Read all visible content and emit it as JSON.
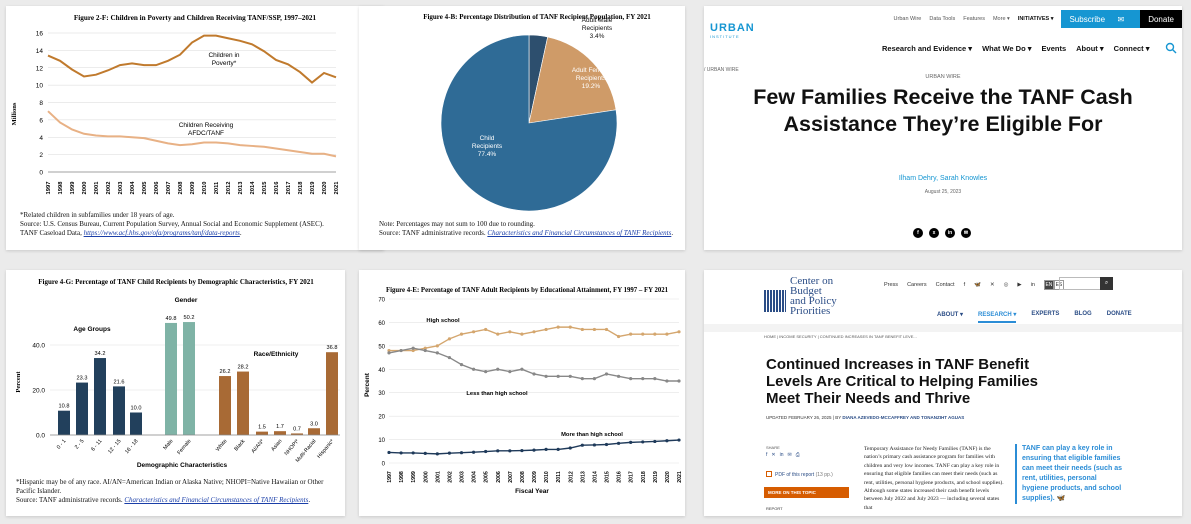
{
  "fig2f": {
    "title": "Figure 2-F: Children in Poverty and Children Receiving TANF/SSP, 1997–2021",
    "ylabel": "Millions",
    "yticks": [
      "0",
      "2",
      "4",
      "6",
      "8",
      "10",
      "12",
      "14",
      "16"
    ],
    "xticks": [
      "1997",
      "1998",
      "1999",
      "2000",
      "2001",
      "2002",
      "2003",
      "2004",
      "2005",
      "2006",
      "2007",
      "2008",
      "2009",
      "2010",
      "2011",
      "2012",
      "2013",
      "2014",
      "2015",
      "2016",
      "2017",
      "2018",
      "2019",
      "2020",
      "2021"
    ],
    "label_poverty": [
      "Children in",
      "Poverty*"
    ],
    "label_tanf": [
      "Children Receiving",
      "AFDC/TANF"
    ],
    "poverty": [
      13.4,
      12.8,
      11.8,
      11.0,
      11.2,
      11.7,
      12.3,
      12.5,
      12.3,
      12.3,
      12.8,
      13.5,
      14.9,
      15.7,
      15.7,
      15.4,
      15.1,
      14.7,
      13.9,
      12.9,
      12.4,
      11.5,
      10.3,
      11.4,
      10.9
    ],
    "tanf": [
      7.0,
      5.7,
      4.9,
      4.4,
      4.2,
      4.1,
      4.1,
      4.0,
      3.9,
      3.6,
      3.3,
      3.1,
      3.2,
      3.4,
      3.4,
      3.3,
      3.1,
      3.0,
      2.9,
      2.7,
      2.5,
      2.3,
      2.1,
      2.1,
      1.8
    ],
    "color_poverty": "#c07a2d",
    "color_tanf": "#e8b185",
    "notes": [
      "*Related children in subfamilies under 18 years of age.",
      "Source:  U.S. Census Bureau, Current Population Survey, Annual Social and Economic Supplement (ASEC).",
      "TANF Caseload Data,"
    ],
    "link": "https://www.acf.hhs.gov/ofa/programs/tanf/data-reports",
    "link_tail": "."
  },
  "fig4b": {
    "title": "Figure 4-B: Percentage Distribution of TANF Recipient Population, FY 2021",
    "slices": [
      {
        "label": [
          "Adult Male",
          "Recipients"
        ],
        "value": 3.4,
        "pct": "3.4%",
        "color": "#2d4f6e"
      },
      {
        "label": [
          "Adult Female",
          "Recipients"
        ],
        "value": 19.2,
        "pct": "19.2%",
        "color": "#cf9b68"
      },
      {
        "label": [
          "Child",
          "Recipients"
        ],
        "value": 77.4,
        "pct": "77.4%",
        "color": "#2f6b96"
      }
    ],
    "note1": "Note: Percentages may not sum to 100 due to rounding.",
    "note2": "Source: TANF administrative records.",
    "link": "Characteristics and Financial Circumstances of TANF Recipients",
    "link_tail": "."
  },
  "urban": {
    "top_links": [
      "Urban Wire",
      "Data Tools",
      "Features",
      "More ▾"
    ],
    "initiatives": "INITIATIVES ▾",
    "subscribe": "Subscribe",
    "donate": "Donate",
    "logo_word": "URBAN",
    "logo_sub": "INSTITUTE",
    "nav": [
      "Research and Evidence ▾",
      "What We Do ▾",
      "Events",
      "About ▾",
      "Connect ▾"
    ],
    "crumb": "/  URBAN WIRE",
    "kicker": "URBAN WIRE",
    "title": "Few Families Receive the TANF Cash Assistance They’re Eligible For",
    "authors": "Ilham Dehry, Sarah Knowles",
    "date": "August 25, 2023",
    "share": [
      "f",
      "x",
      "in",
      "✉"
    ]
  },
  "fig4g": {
    "title": "Figure 4-G:  Percentage of TANF Child Recipients by Demographic Characteristics, FY 2021",
    "ylabel": "Percent",
    "xlabel": "Demographic Characteristics",
    "yticks": [
      "0.0",
      "20.0",
      "40.0"
    ],
    "group_age": "Age Groups",
    "group_gender": "Gender",
    "group_race": "Race/Ethnicity",
    "bars": [
      {
        "cat": "0 - 1",
        "value": 10.8,
        "label": "10.8",
        "group": "age"
      },
      {
        "cat": "2 - 5",
        "value": 23.3,
        "label": "23.3",
        "group": "age"
      },
      {
        "cat": "6 - 11",
        "value": 34.2,
        "label": "34.2",
        "group": "age"
      },
      {
        "cat": "12 - 15",
        "value": 21.6,
        "label": "21.6",
        "group": "age"
      },
      {
        "cat": "16 - 18",
        "value": 10.0,
        "label": "10.0",
        "group": "age"
      },
      {
        "cat": "Male",
        "value": 49.8,
        "label": "49.8",
        "group": "gender"
      },
      {
        "cat": "Female",
        "value": 50.2,
        "label": "50.2",
        "group": "gender"
      },
      {
        "cat": "White",
        "value": 26.2,
        "label": "26.2",
        "group": "race"
      },
      {
        "cat": "Black",
        "value": 28.2,
        "label": "28.2",
        "group": "race"
      },
      {
        "cat": "AI/AN*",
        "value": 1.5,
        "label": "1.5",
        "group": "race"
      },
      {
        "cat": "Asian",
        "value": 1.7,
        "label": "1.7",
        "group": "race"
      },
      {
        "cat": "NHOPI*",
        "value": 0.7,
        "label": "0.7",
        "group": "race"
      },
      {
        "cat": "Multi-Racial",
        "value": 3.0,
        "label": "3.0",
        "group": "race"
      },
      {
        "cat": "Hispanic*",
        "value": 36.8,
        "label": "36.8",
        "group": "race"
      }
    ],
    "colors": {
      "age": "#22405c",
      "gender": "#7fb3a6",
      "race": "#a86a35"
    },
    "notes": [
      "*Hispanic may be of any race.  AI/AN=American Indian or Alaska Native; NHOPI=Native Hawaiian or Other",
      "Pacific Islander.",
      "Source:  TANF administrative records."
    ],
    "link": "Characteristics and Financial Circumstances of TANF Recipients",
    "link_tail": "."
  },
  "fig4e": {
    "title": "Figure 4-E:  Percentage of TANF Adult Recipients by Educational Attainment, FY 1997 – FY 2021",
    "ylabel": "Percent",
    "xlabel": "Fiscal Year",
    "yticks": [
      "0",
      "10",
      "20",
      "30",
      "40",
      "50",
      "60",
      "70"
    ],
    "xticks": [
      "1997",
      "1998",
      "1999",
      "2000",
      "2001",
      "2002",
      "2003",
      "2004",
      "2005",
      "2006",
      "2007",
      "2008",
      "2009",
      "2010",
      "2011",
      "2012",
      "2013",
      "2014",
      "2015",
      "2016",
      "2017",
      "2018",
      "2019",
      "2020",
      "2021"
    ],
    "label_hs": "High school",
    "label_lt": "Less than high school",
    "label_mt": "More than high school",
    "hs": [
      48.0,
      48.0,
      48.0,
      49.0,
      50.0,
      53.0,
      55.0,
      56.0,
      57.0,
      55.0,
      56.0,
      55.0,
      56.0,
      57.0,
      58.0,
      58.0,
      57.0,
      57.0,
      57.0,
      54.0,
      55.0,
      55.0,
      55.0,
      55.0,
      56.0
    ],
    "lt": [
      47.0,
      48.0,
      49.0,
      48.0,
      47.0,
      45.0,
      42.0,
      40.0,
      39.0,
      40.0,
      39.0,
      40.0,
      38.0,
      37.0,
      37.0,
      37.0,
      36.0,
      36.0,
      38.0,
      37.0,
      36.0,
      36.0,
      36.0,
      35.0,
      35.0
    ],
    "mt": [
      4.5,
      4.3,
      4.3,
      4.1,
      3.9,
      4.2,
      4.4,
      4.6,
      4.9,
      5.2,
      5.2,
      5.3,
      5.5,
      5.8,
      5.8,
      6.4,
      7.6,
      7.7,
      7.9,
      8.4,
      8.8,
      9.0,
      9.2,
      9.5,
      9.8
    ],
    "color_hs": "#d4a66e",
    "color_lt": "#888888",
    "color_mt": "#1f3a5a"
  },
  "cbpp": {
    "logo": [
      "Center on",
      "Budget",
      "and Policy",
      "Priorities"
    ],
    "util": [
      "Press",
      "Careers",
      "Contact"
    ],
    "lang": [
      "EN",
      "ES"
    ],
    "nav": [
      "ABOUT ▾",
      "RESEARCH ▾",
      "EXPERTS",
      "BLOG",
      "DONATE"
    ],
    "crumb": "HOME  |  INCOME SECURITY  |  CONTINUED INCREASES IN TANF BENEFIT LEVE...",
    "title": "Continued Increases in TANF Benefit Levels Are Critical to Helping Families Meet Their Needs and Thrive",
    "updated": "UPDATED FEBRUARY 26, 2025  |  BY ",
    "byline": "DIANA AZEVEDO-MCCAFFREY AND TONANZIHT AGUAS",
    "share": "SHARE",
    "share_icons": [
      "f",
      "✕",
      "in",
      "✉",
      "⎙"
    ],
    "pdf": "PDF of this report",
    "pdf_pages": "(13 pp.)",
    "more": "MORE ON THIS TOPIC",
    "report": "REPORT",
    "body": "Temporary Assistance for Needy Families (TANF) is the nation’s primary cash assistance program for families with children and very low incomes. TANF can play a key role in ensuring that eligible families can meet their needs (such as rent, utilities, personal hygiene products, and school supplies). Although some states increased their cash benefit levels between July 2022 and July 2023 — including several states that",
    "quote": "TANF can play a key role in ensuring that eligible families can meet their needs (such as rent, utilities, personal hygiene products, and school supplies)."
  }
}
